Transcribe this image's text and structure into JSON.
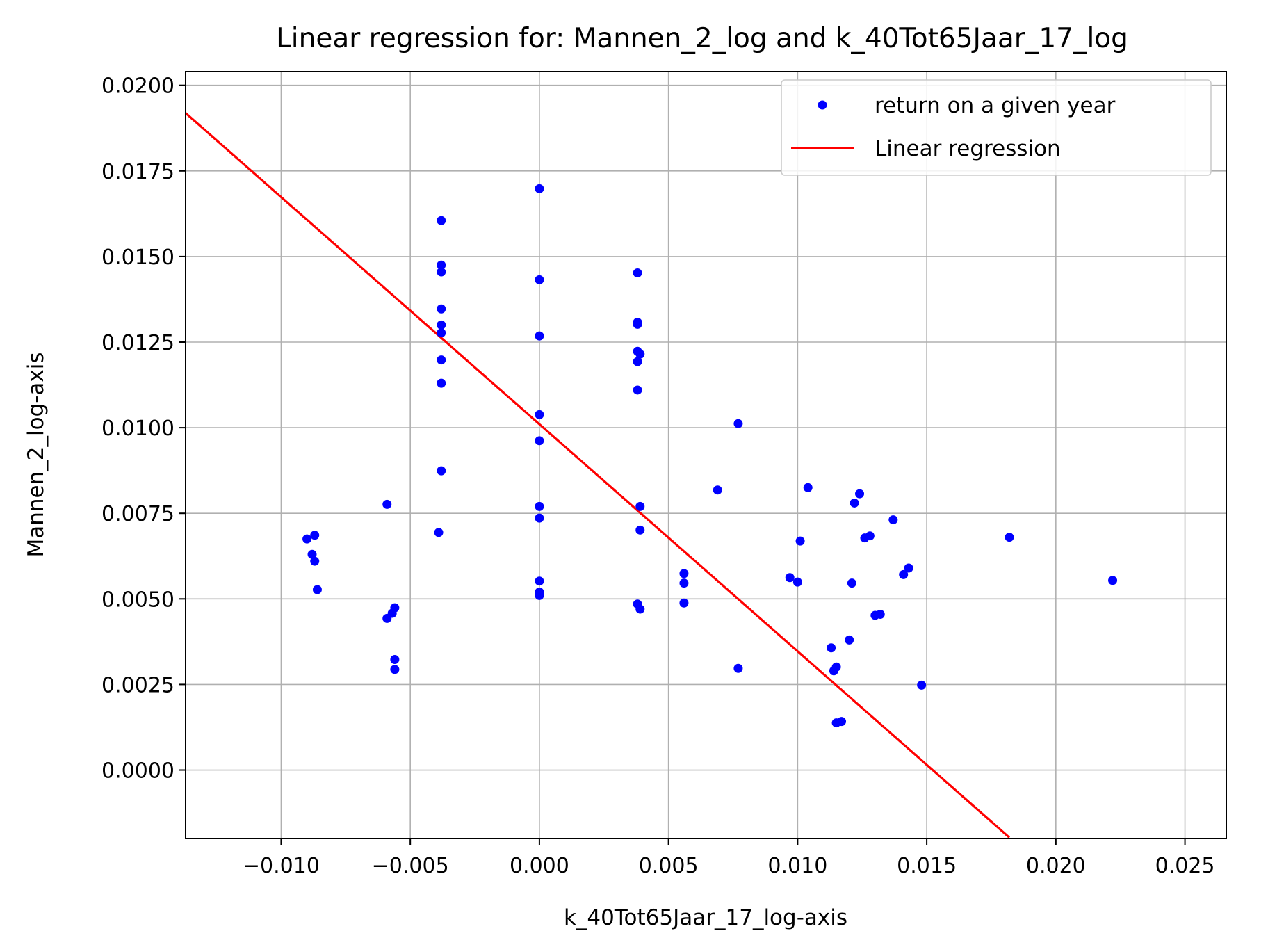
{
  "chart_data": {
    "type": "scatter",
    "title": "Linear regression for: Mannen_2_log and k_40Tot65Jaar_17_log",
    "xlabel": "k_40Tot65Jaar_17_log-axis",
    "ylabel": "Mannen_2_log-axis",
    "xlim": [
      -0.0137,
      0.0266
    ],
    "ylim": [
      -0.002,
      0.0204
    ],
    "grid": true,
    "legend_location": "top-right",
    "xticks": [
      -0.01,
      -0.005,
      0.0,
      0.005,
      0.01,
      0.015,
      0.02,
      0.025
    ],
    "xtick_labels": [
      "−0.010",
      "−0.005",
      "0.000",
      "0.005",
      "0.010",
      "0.015",
      "0.020",
      "0.025"
    ],
    "yticks": [
      0.0,
      0.0025,
      0.005,
      0.0075,
      0.01,
      0.0125,
      0.015,
      0.0175,
      0.02
    ],
    "ytick_labels": [
      "0.0000",
      "0.0025",
      "0.0050",
      "0.0075",
      "0.0100",
      "0.0125",
      "0.0150",
      "0.0175",
      "0.0200"
    ],
    "series": [
      {
        "name": "return on a given year",
        "kind": "scatter",
        "color": "#0000ff",
        "points": [
          [
            -0.009,
            0.00675
          ],
          [
            -0.0087,
            0.00686
          ],
          [
            -0.0088,
            0.0063
          ],
          [
            -0.0087,
            0.0061
          ],
          [
            -0.0086,
            0.00527
          ],
          [
            -0.0059,
            0.00776
          ],
          [
            -0.0059,
            0.00443
          ],
          [
            -0.0057,
            0.00458
          ],
          [
            -0.0056,
            0.00474
          ],
          [
            -0.0056,
            0.00323
          ],
          [
            -0.0056,
            0.00294
          ],
          [
            -0.0038,
            0.01605
          ],
          [
            -0.0038,
            0.01475
          ],
          [
            -0.0038,
            0.01455
          ],
          [
            -0.0038,
            0.01347
          ],
          [
            -0.0038,
            0.013
          ],
          [
            -0.0038,
            0.01277
          ],
          [
            -0.0038,
            0.01198
          ],
          [
            -0.0038,
            0.0113
          ],
          [
            -0.0038,
            0.00874
          ],
          [
            -0.0039,
            0.00694
          ],
          [
            0.0,
            0.01698
          ],
          [
            0.0,
            0.01432
          ],
          [
            0.0,
            0.01268
          ],
          [
            0.0,
            0.01038
          ],
          [
            0.0,
            0.00962
          ],
          [
            0.0,
            0.0077
          ],
          [
            0.0,
            0.00736
          ],
          [
            0.0,
            0.00552
          ],
          [
            0.0,
            0.0052
          ],
          [
            0.0,
            0.0051
          ],
          [
            0.0038,
            0.01452
          ],
          [
            0.0038,
            0.01308
          ],
          [
            0.0038,
            0.01302
          ],
          [
            0.0038,
            0.01223
          ],
          [
            0.0039,
            0.01215
          ],
          [
            0.0038,
            0.01193
          ],
          [
            0.0038,
            0.0111
          ],
          [
            0.0039,
            0.0077
          ],
          [
            0.0039,
            0.00701
          ],
          [
            0.0038,
            0.00485
          ],
          [
            0.0039,
            0.0047
          ],
          [
            0.0056,
            0.00574
          ],
          [
            0.0056,
            0.00546
          ],
          [
            0.0056,
            0.00488
          ],
          [
            0.0069,
            0.00818
          ],
          [
            0.0077,
            0.01012
          ],
          [
            0.0077,
            0.00297
          ],
          [
            0.0097,
            0.00562
          ],
          [
            0.01,
            0.00549
          ],
          [
            0.0101,
            0.00669
          ],
          [
            0.0104,
            0.00825
          ],
          [
            0.0113,
            0.00357
          ],
          [
            0.0114,
            0.0029
          ],
          [
            0.0115,
            0.00301
          ],
          [
            0.0115,
            0.00138
          ],
          [
            0.0117,
            0.00142
          ],
          [
            0.012,
            0.0038
          ],
          [
            0.0121,
            0.00546
          ],
          [
            0.0122,
            0.0078
          ],
          [
            0.0124,
            0.00807
          ],
          [
            0.0126,
            0.00678
          ],
          [
            0.0128,
            0.00684
          ],
          [
            0.013,
            0.00452
          ],
          [
            0.0132,
            0.00455
          ],
          [
            0.0137,
            0.00731
          ],
          [
            0.0141,
            0.00571
          ],
          [
            0.0143,
            0.0059
          ],
          [
            0.0148,
            0.00248
          ],
          [
            0.0182,
            0.0068
          ],
          [
            0.0222,
            0.00554
          ]
        ]
      },
      {
        "name": "Linear regression",
        "kind": "line",
        "color": "#ff0000",
        "points": [
          [
            -0.0137,
            0.01919
          ],
          [
            0.0182,
            -0.00197
          ]
        ]
      }
    ]
  }
}
